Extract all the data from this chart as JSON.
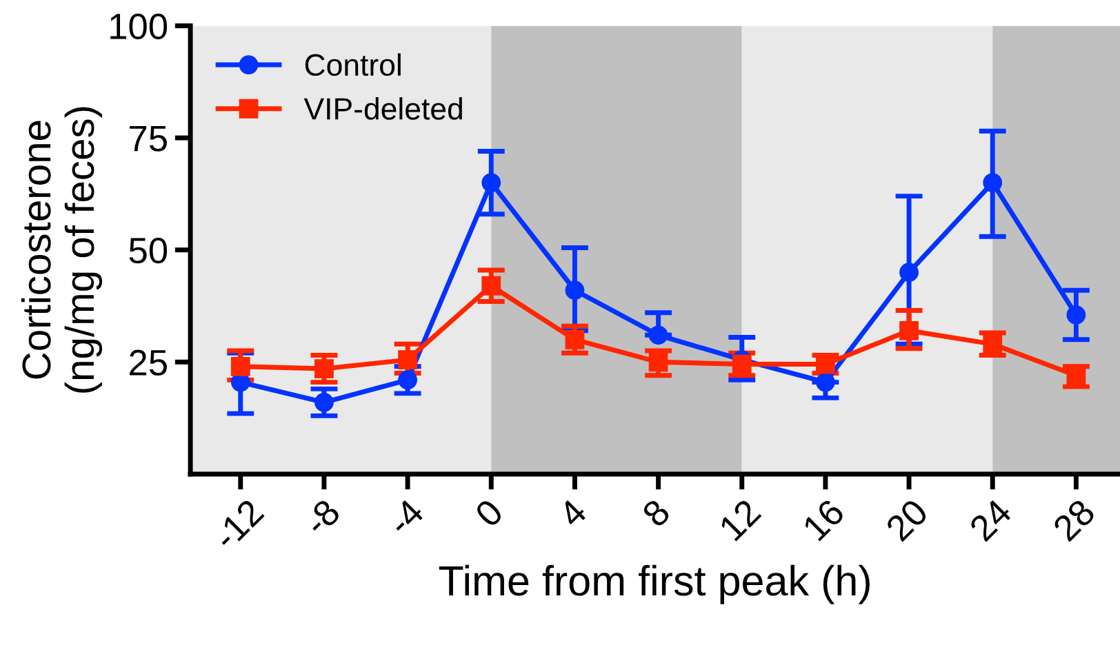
{
  "chart_data": {
    "type": "line",
    "xlabel": "Time from first peak (h)",
    "ylabel": "Corticosterone\n(ng/mg of feces)",
    "x": [
      -12,
      -8,
      -4,
      0,
      4,
      8,
      12,
      16,
      20,
      24,
      28
    ],
    "xlim": [
      -14.4,
      30.1
    ],
    "xticks": [
      -12,
      -8,
      -4,
      0,
      4,
      8,
      12,
      16,
      20,
      24,
      28
    ],
    "ylim": [
      0,
      100
    ],
    "yticks": [
      25,
      50,
      75,
      100
    ],
    "grid": false,
    "legend": "top left",
    "bands": [
      {
        "axis": "x",
        "from": -14.4,
        "to": 0,
        "color": "#e9e9e9"
      },
      {
        "axis": "x",
        "from": 0,
        "to": 12,
        "color": "#c0c0c0"
      },
      {
        "axis": "x",
        "from": 12,
        "to": 24,
        "color": "#e9e9e9"
      },
      {
        "axis": "x",
        "from": 24,
        "to": 30.1,
        "color": "#c0c0c0"
      }
    ],
    "series": [
      {
        "name": "Control",
        "color": "#0433ff",
        "marker": "circle",
        "values": [
          20.5,
          16,
          21,
          65,
          41,
          31,
          25.5,
          20.5,
          45,
          65,
          35.5
        ],
        "errors": [
          [
            13.5,
            27
          ],
          [
            13,
            19
          ],
          [
            18,
            24
          ],
          [
            58,
            72
          ],
          [
            32,
            50.5
          ],
          [
            31,
            36
          ],
          [
            21,
            30.5
          ],
          [
            17,
            20.5
          ],
          [
            29,
            62
          ],
          [
            53,
            76.5
          ],
          [
            30,
            41
          ]
        ]
      },
      {
        "name": "VIP-deleted",
        "color": "#ff2600",
        "marker": "square",
        "values": [
          24,
          23.5,
          25.5,
          42,
          30,
          25,
          24.5,
          24.5,
          32,
          29,
          22
        ],
        "errors": [
          [
            21,
            27.5
          ],
          [
            20.5,
            26.5
          ],
          [
            22.5,
            29
          ],
          [
            38.5,
            45.5
          ],
          [
            27,
            33
          ],
          [
            22,
            27.5
          ],
          [
            22,
            27
          ],
          [
            22.5,
            26.5
          ],
          [
            28,
            36.5
          ],
          [
            26.5,
            31.5
          ],
          [
            19.5,
            24
          ]
        ]
      }
    ]
  }
}
